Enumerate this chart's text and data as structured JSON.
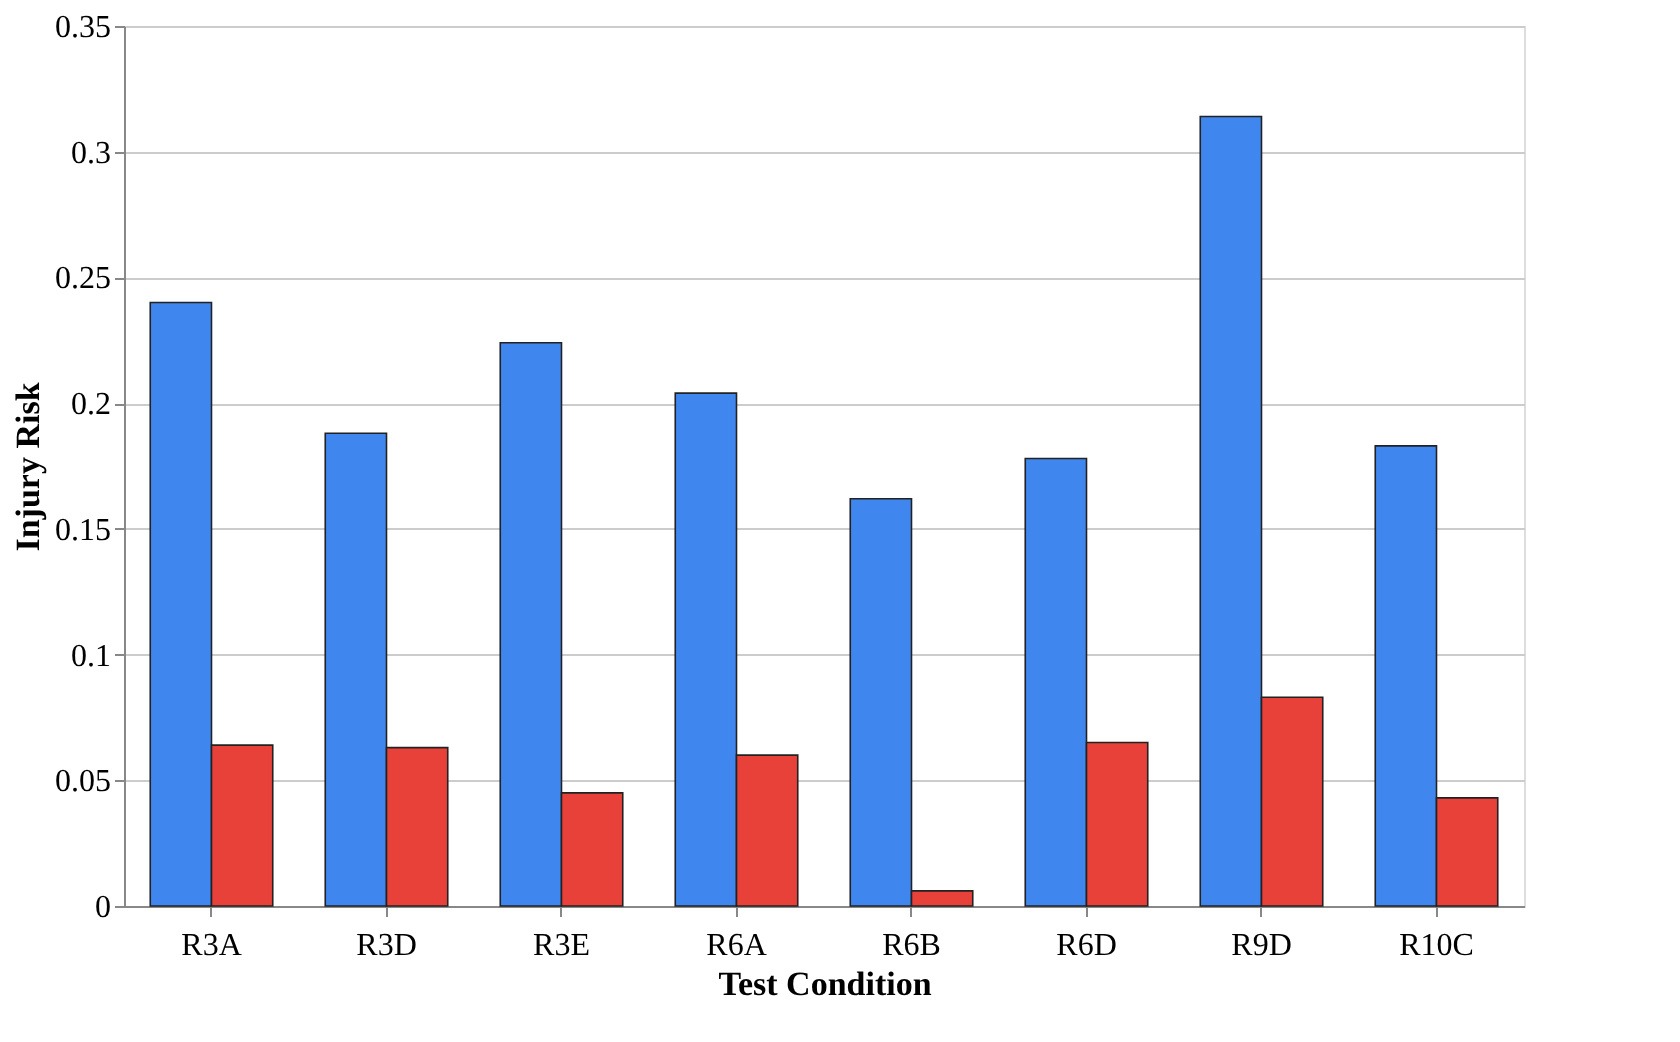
{
  "chart_data": {
    "type": "bar",
    "xlabel": "Test Condition",
    "ylabel": "Injury Risk",
    "categories": [
      "R3A",
      "R3D",
      "R3E",
      "R6A",
      "R6B",
      "R6D",
      "R9D",
      "R10C"
    ],
    "series": [
      {
        "color": "#3f86ef",
        "values": [
          0.24,
          0.188,
          0.224,
          0.204,
          0.162,
          0.178,
          0.314,
          0.183
        ]
      },
      {
        "color": "#e8413a",
        "values": [
          0.064,
          0.063,
          0.045,
          0.06,
          0.006,
          0.065,
          0.083,
          0.043
        ]
      }
    ],
    "ylim": [
      0,
      0.35
    ],
    "yticks": [
      0,
      {
        "value": 0.05,
        "label": "0.05"
      },
      {
        "value": 0.1,
        "label": "0.1"
      },
      {
        "value": 0.15,
        "label": "0.15"
      },
      {
        "value": 0.2,
        "label": "0.2"
      },
      {
        "value": 0.25,
        "label": "0.25"
      },
      {
        "value": 0.3,
        "label": "0.3"
      },
      {
        "value": 0.35,
        "label": "0.35"
      }
    ],
    "grid": "y",
    "legend": false
  }
}
